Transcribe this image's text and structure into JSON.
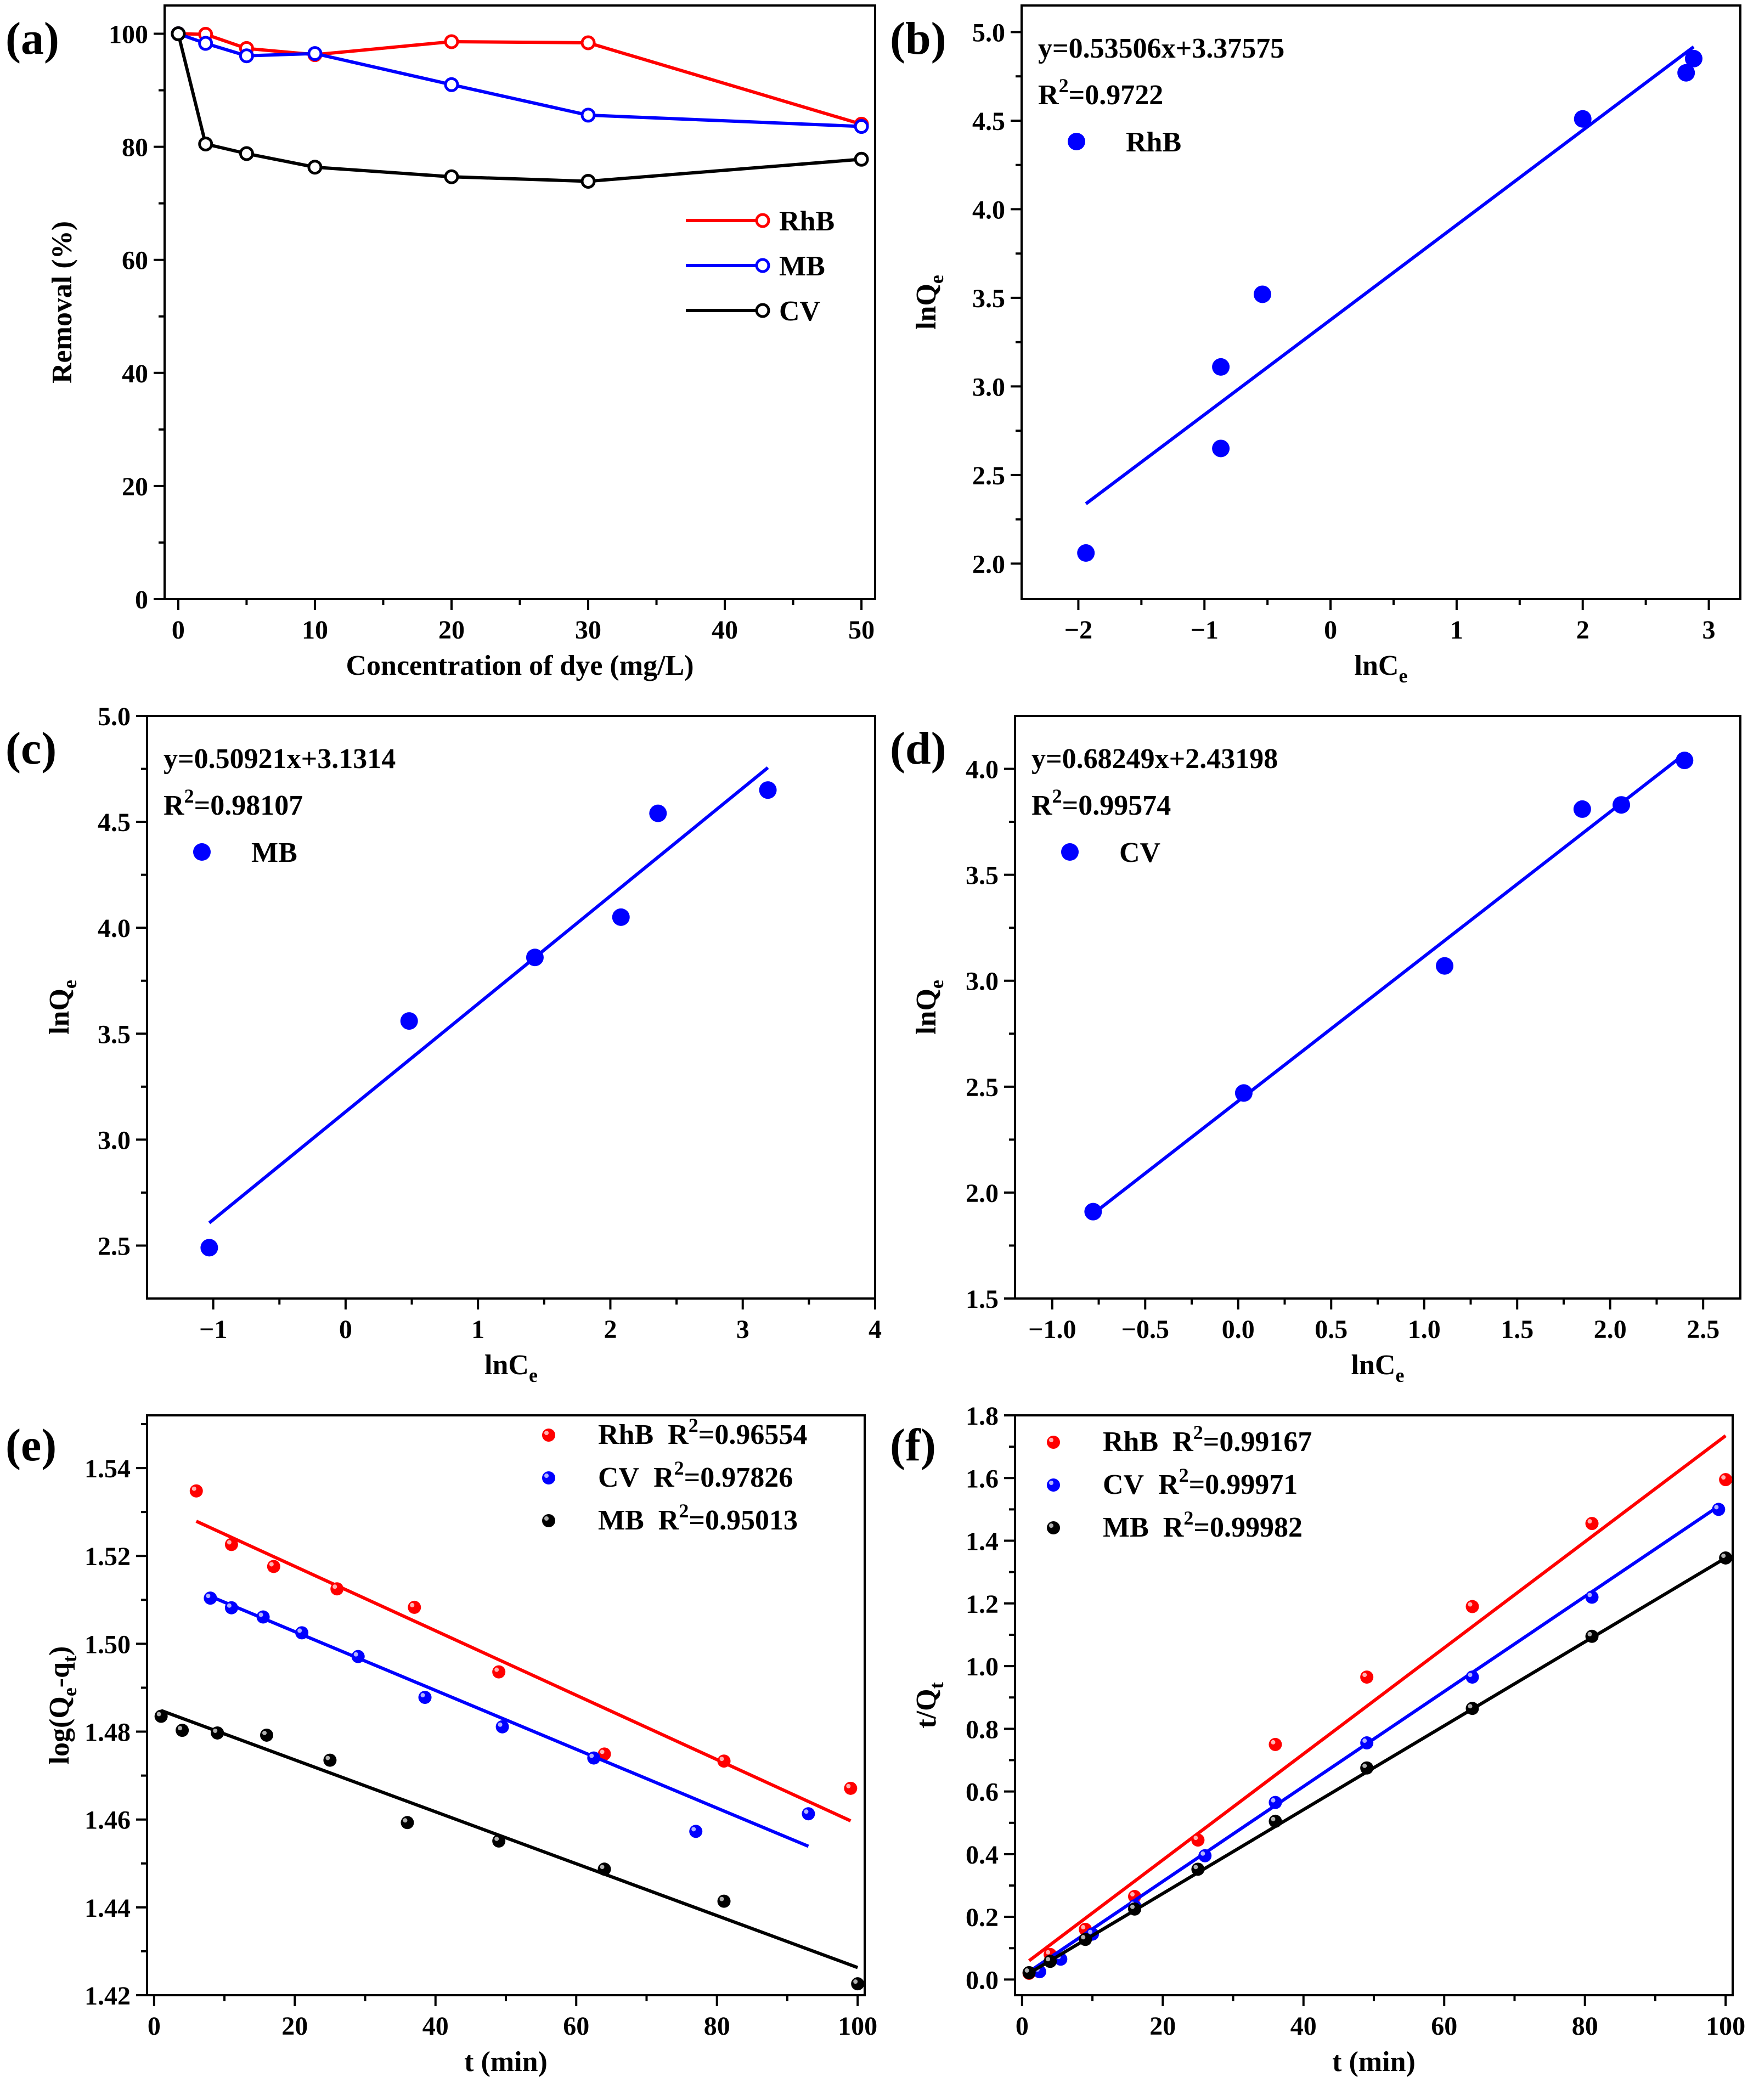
{
  "colors": {
    "red": "#ff0000",
    "blue": "#0000ff",
    "black": "#000000"
  },
  "chart_data": [
    {
      "panel": "(a)",
      "type": "line",
      "xlabel": "Concentration of dye (mg/L)",
      "ylabel": "Removal (%)",
      "xlim": [
        -1,
        51
      ],
      "ylim": [
        0,
        105
      ],
      "xticks": [
        0,
        10,
        20,
        30,
        40,
        50
      ],
      "yticks": [
        0,
        20,
        40,
        60,
        80,
        100
      ],
      "legend": "center-right",
      "series": [
        {
          "name": "RhB",
          "color": "#ff0000",
          "x": [
            0,
            2,
            5,
            10,
            20,
            30,
            50
          ],
          "y": [
            100,
            99.9,
            97.4,
            96.3,
            98.6,
            98.4,
            84.0
          ]
        },
        {
          "name": "MB",
          "color": "#0000ff",
          "x": [
            0,
            2,
            5,
            10,
            20,
            30,
            50
          ],
          "y": [
            100,
            98.3,
            96.1,
            96.5,
            91.0,
            85.6,
            83.6
          ]
        },
        {
          "name": "CV",
          "color": "#000000",
          "x": [
            0,
            2,
            5,
            10,
            20,
            30,
            50
          ],
          "y": [
            100,
            80.5,
            78.8,
            76.4,
            74.7,
            73.9,
            77.8
          ]
        }
      ]
    },
    {
      "panel": "(b)",
      "type": "scatter",
      "xlabel": "lnC",
      "xlabel_sub": "e",
      "ylabel": "lnQ",
      "ylabel_sub": "e",
      "xlim": [
        -2.45,
        3.25
      ],
      "ylim": [
        1.8,
        5.15
      ],
      "xticks": [
        -2,
        -1,
        0,
        1,
        2,
        3
      ],
      "yticks": [
        2.0,
        2.5,
        3.0,
        3.5,
        4.0,
        4.5,
        5.0
      ],
      "equation": "y=0.53506x+3.37575",
      "r2_label": "R",
      "r2_value": "=0.9722",
      "legend": "top-left",
      "series": [
        {
          "name": "RhB",
          "color": "#0000ff",
          "x": [
            -1.94,
            -0.87,
            -0.87,
            -0.54,
            2.0,
            2.82,
            2.88
          ],
          "y": [
            2.06,
            2.65,
            3.11,
            3.52,
            4.51,
            4.77,
            4.85
          ]
        }
      ],
      "fit": {
        "slope": 0.53506,
        "intercept": 3.37575,
        "x": [
          -1.94,
          2.88
        ]
      }
    },
    {
      "panel": "(c)",
      "type": "scatter",
      "xlabel": "lnC",
      "xlabel_sub": "e",
      "ylabel": "lnQ",
      "ylabel_sub": "e",
      "xlim": [
        -1.5,
        4
      ],
      "ylim": [
        2.25,
        5.0
      ],
      "xticks": [
        -1,
        0,
        1,
        2,
        3,
        4
      ],
      "yticks": [
        2.5,
        3.0,
        3.5,
        4.0,
        4.5,
        5.0
      ],
      "equation": "y=0.50921x+3.1314",
      "r2_label": "R",
      "r2_value": "=0.98107",
      "legend": "top-left",
      "series": [
        {
          "name": "MB",
          "color": "#0000ff",
          "x": [
            -1.03,
            0.48,
            1.43,
            2.08,
            2.36,
            3.19
          ],
          "y": [
            2.49,
            3.56,
            3.86,
            4.05,
            4.54,
            4.65
          ]
        }
      ],
      "fit": {
        "slope": 0.50921,
        "intercept": 3.1314,
        "x": [
          -1.03,
          3.19
        ]
      }
    },
    {
      "panel": "(d)",
      "type": "scatter",
      "xlabel": "lnC",
      "xlabel_sub": "e",
      "ylabel": "lnQ",
      "ylabel_sub": "e",
      "xlim": [
        -1.2,
        2.7
      ],
      "ylim": [
        1.5,
        4.25
      ],
      "xticks": [
        -1.0,
        -0.5,
        0.0,
        0.5,
        1.0,
        1.5,
        2.0,
        2.5
      ],
      "yticks": [
        1.5,
        2.0,
        2.5,
        3.0,
        3.5,
        4.0
      ],
      "equation": "y=0.68249x+2.43198",
      "r2_label": "R",
      "r2_value": "=0.99574",
      "legend": "top-left",
      "series": [
        {
          "name": "CV",
          "color": "#0000ff",
          "x": [
            -0.78,
            0.03,
            1.11,
            1.85,
            2.06,
            2.4
          ],
          "y": [
            1.91,
            2.47,
            3.07,
            3.81,
            3.83,
            4.04
          ]
        }
      ],
      "fit": {
        "slope": 0.68249,
        "intercept": 2.43198,
        "x": [
          -0.78,
          2.4
        ]
      }
    },
    {
      "panel": "(e)",
      "type": "scatter",
      "xlabel": "t (min)",
      "ylabel": "log(Q",
      "ylabel_sub": "e",
      "ylabel_mid": "-q",
      "ylabel_sub2": "t",
      "ylabel_end": ")",
      "xlim": [
        -1,
        101
      ],
      "ylim": [
        1.42,
        1.552
      ],
      "xticks": [
        0,
        20,
        40,
        60,
        80,
        100
      ],
      "yticks": [
        1.42,
        1.44,
        1.46,
        1.48,
        1.5,
        1.52,
        1.54
      ],
      "legend": "top-right",
      "series": [
        {
          "name": "RhB",
          "r2_value": "=0.96554",
          "color": "#ff0000",
          "x": [
            6,
            11,
            17,
            26,
            37,
            49,
            64,
            81,
            99
          ],
          "y": [
            1.5348,
            1.5226,
            1.5176,
            1.5125,
            1.5083,
            1.4936,
            1.4749,
            1.4733,
            1.4671
          ],
          "fit": {
            "x": [
              6,
              99
            ],
            "y": [
              1.5279,
              1.4597
            ]
          }
        },
        {
          "name": "CV",
          "r2_value": "=0.97826",
          "color": "#0000ff",
          "x": [
            8,
            11,
            15.5,
            21,
            29,
            38.5,
            49.5,
            62.5,
            77,
            93
          ],
          "y": [
            1.5104,
            1.5082,
            1.5061,
            1.5025,
            1.4971,
            1.4878,
            1.4811,
            1.474,
            1.4573,
            1.4613
          ],
          "fit": {
            "x": [
              8,
              93
            ],
            "y": [
              1.5108,
              1.4539
            ]
          }
        },
        {
          "name": "MB",
          "r2_value": "=0.95013",
          "color": "#000000",
          "x": [
            1,
            4,
            9,
            16,
            25,
            36,
            49,
            64,
            81,
            100
          ],
          "y": [
            1.4835,
            1.4803,
            1.4797,
            1.4792,
            1.4735,
            1.4593,
            1.4551,
            1.4487,
            1.4414,
            1.4226
          ],
          "fit": {
            "x": [
              1,
              100
            ],
            "y": [
              1.4848,
              1.4263
            ]
          }
        }
      ]
    },
    {
      "panel": "(f)",
      "type": "scatter",
      "xlabel": "t (min)",
      "ylabel": "t/Q",
      "ylabel_sub": "t",
      "xlim": [
        -1,
        101
      ],
      "ylim": [
        -0.05,
        1.8
      ],
      "xticks": [
        0,
        20,
        40,
        60,
        80,
        100
      ],
      "yticks": [
        0.0,
        0.2,
        0.4,
        0.6,
        0.8,
        1.0,
        1.2,
        1.4,
        1.6,
        1.8
      ],
      "legend": "top-left",
      "series": [
        {
          "name": "RhB",
          "r2_value": "=0.99167",
          "color": "#ff0000",
          "x": [
            1,
            4,
            9,
            16,
            25,
            36,
            49,
            64,
            81,
            100
          ],
          "y": [
            0.02,
            0.08,
            0.16,
            0.265,
            0.445,
            0.75,
            0.965,
            1.19,
            1.455,
            1.595
          ],
          "fit": {
            "x": [
              1,
              100
            ],
            "y": [
              0.06,
              1.735
            ]
          }
        },
        {
          "name": "CV",
          "r2_value": "=0.99971",
          "color": "#0000ff",
          "x": [
            2.5,
            5.5,
            10,
            16,
            26,
            36,
            49,
            64,
            81,
            99
          ],
          "y": [
            0.025,
            0.065,
            0.145,
            0.235,
            0.395,
            0.565,
            0.755,
            0.965,
            1.22,
            1.5
          ],
          "fit": {
            "x": [
              1,
              99
            ],
            "y": [
              0.025,
              1.51
            ]
          }
        },
        {
          "name": "MB",
          "r2_value": "=0.99982",
          "color": "#000000",
          "x": [
            1,
            4,
            9,
            16,
            25,
            36,
            49,
            64,
            81,
            100
          ],
          "y": [
            0.022,
            0.058,
            0.128,
            0.225,
            0.352,
            0.505,
            0.675,
            0.865,
            1.095,
            1.345
          ],
          "fit": {
            "x": [
              1,
              100
            ],
            "y": [
              0.02,
              1.345
            ]
          }
        }
      ]
    }
  ]
}
